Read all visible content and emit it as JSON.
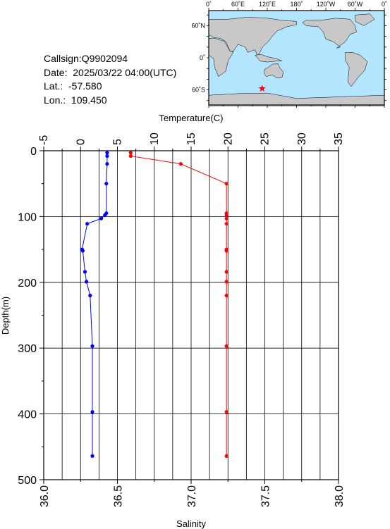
{
  "info": {
    "callsign": "Callsign:Q9902094",
    "date": "Date:  2025/03/22 04:00(UTC)",
    "lat": "Lat.:  -57.580",
    "lon": "Lon.:  109.450"
  },
  "map": {
    "top_labels": [
      "0˚",
      "60˚E",
      "120˚E",
      "180˚",
      "120˚W",
      "60˚W",
      "0˚"
    ],
    "left_labels": [
      "60˚N",
      "0˚",
      "60˚S"
    ],
    "ocean_color": "#b3e5ff",
    "land_color": "#c8c8c8",
    "marker": {
      "lon": 109.45,
      "lat": -57.58,
      "color": "#ff0000",
      "symbol": "star"
    }
  },
  "chart_data": {
    "type": "line",
    "xlabel_top": "Temperature(C)",
    "xlabel_bottom": "Salinity",
    "ylabel": "Depth(m)",
    "temperature_ticks": [
      "-5",
      "0",
      "5",
      "10",
      "15",
      "20",
      "25",
      "30",
      "35"
    ],
    "salinity_ticks": [
      "36.0",
      "36.5",
      "37.0",
      "37.5",
      "38.0"
    ],
    "depth_ticks": [
      "0",
      "100",
      "200",
      "300",
      "400",
      "500"
    ],
    "temp_lim": [
      -5,
      35
    ],
    "sal_lim": [
      36.0,
      38.0
    ],
    "depth_lim": [
      0,
      500
    ],
    "grid": true,
    "series": [
      {
        "axis": "temperature",
        "color": "#0000ff",
        "points": [
          [
            3.6,
            3
          ],
          [
            3.6,
            8
          ],
          [
            3.6,
            20
          ],
          [
            3.5,
            50
          ],
          [
            3.5,
            95
          ],
          [
            3.3,
            98
          ],
          [
            2.8,
            103
          ],
          [
            0.9,
            111
          ],
          [
            0.2,
            150
          ],
          [
            0.3,
            152
          ],
          [
            0.6,
            184
          ],
          [
            0.8,
            199
          ],
          [
            1.3,
            220
          ],
          [
            1.6,
            297
          ],
          [
            1.6,
            397
          ],
          [
            1.6,
            464
          ]
        ]
      },
      {
        "axis": "salinity",
        "color": "#ff0000",
        "points": [
          [
            36.59,
            3
          ],
          [
            36.59,
            8
          ],
          [
            36.93,
            20
          ],
          [
            37.24,
            50
          ],
          [
            37.24,
            95
          ],
          [
            37.24,
            98
          ],
          [
            37.24,
            103
          ],
          [
            37.24,
            111
          ],
          [
            37.24,
            150
          ],
          [
            37.24,
            152
          ],
          [
            37.24,
            184
          ],
          [
            37.24,
            199
          ],
          [
            37.24,
            220
          ],
          [
            37.24,
            297
          ],
          [
            37.24,
            397
          ],
          [
            37.24,
            464
          ]
        ]
      }
    ]
  }
}
